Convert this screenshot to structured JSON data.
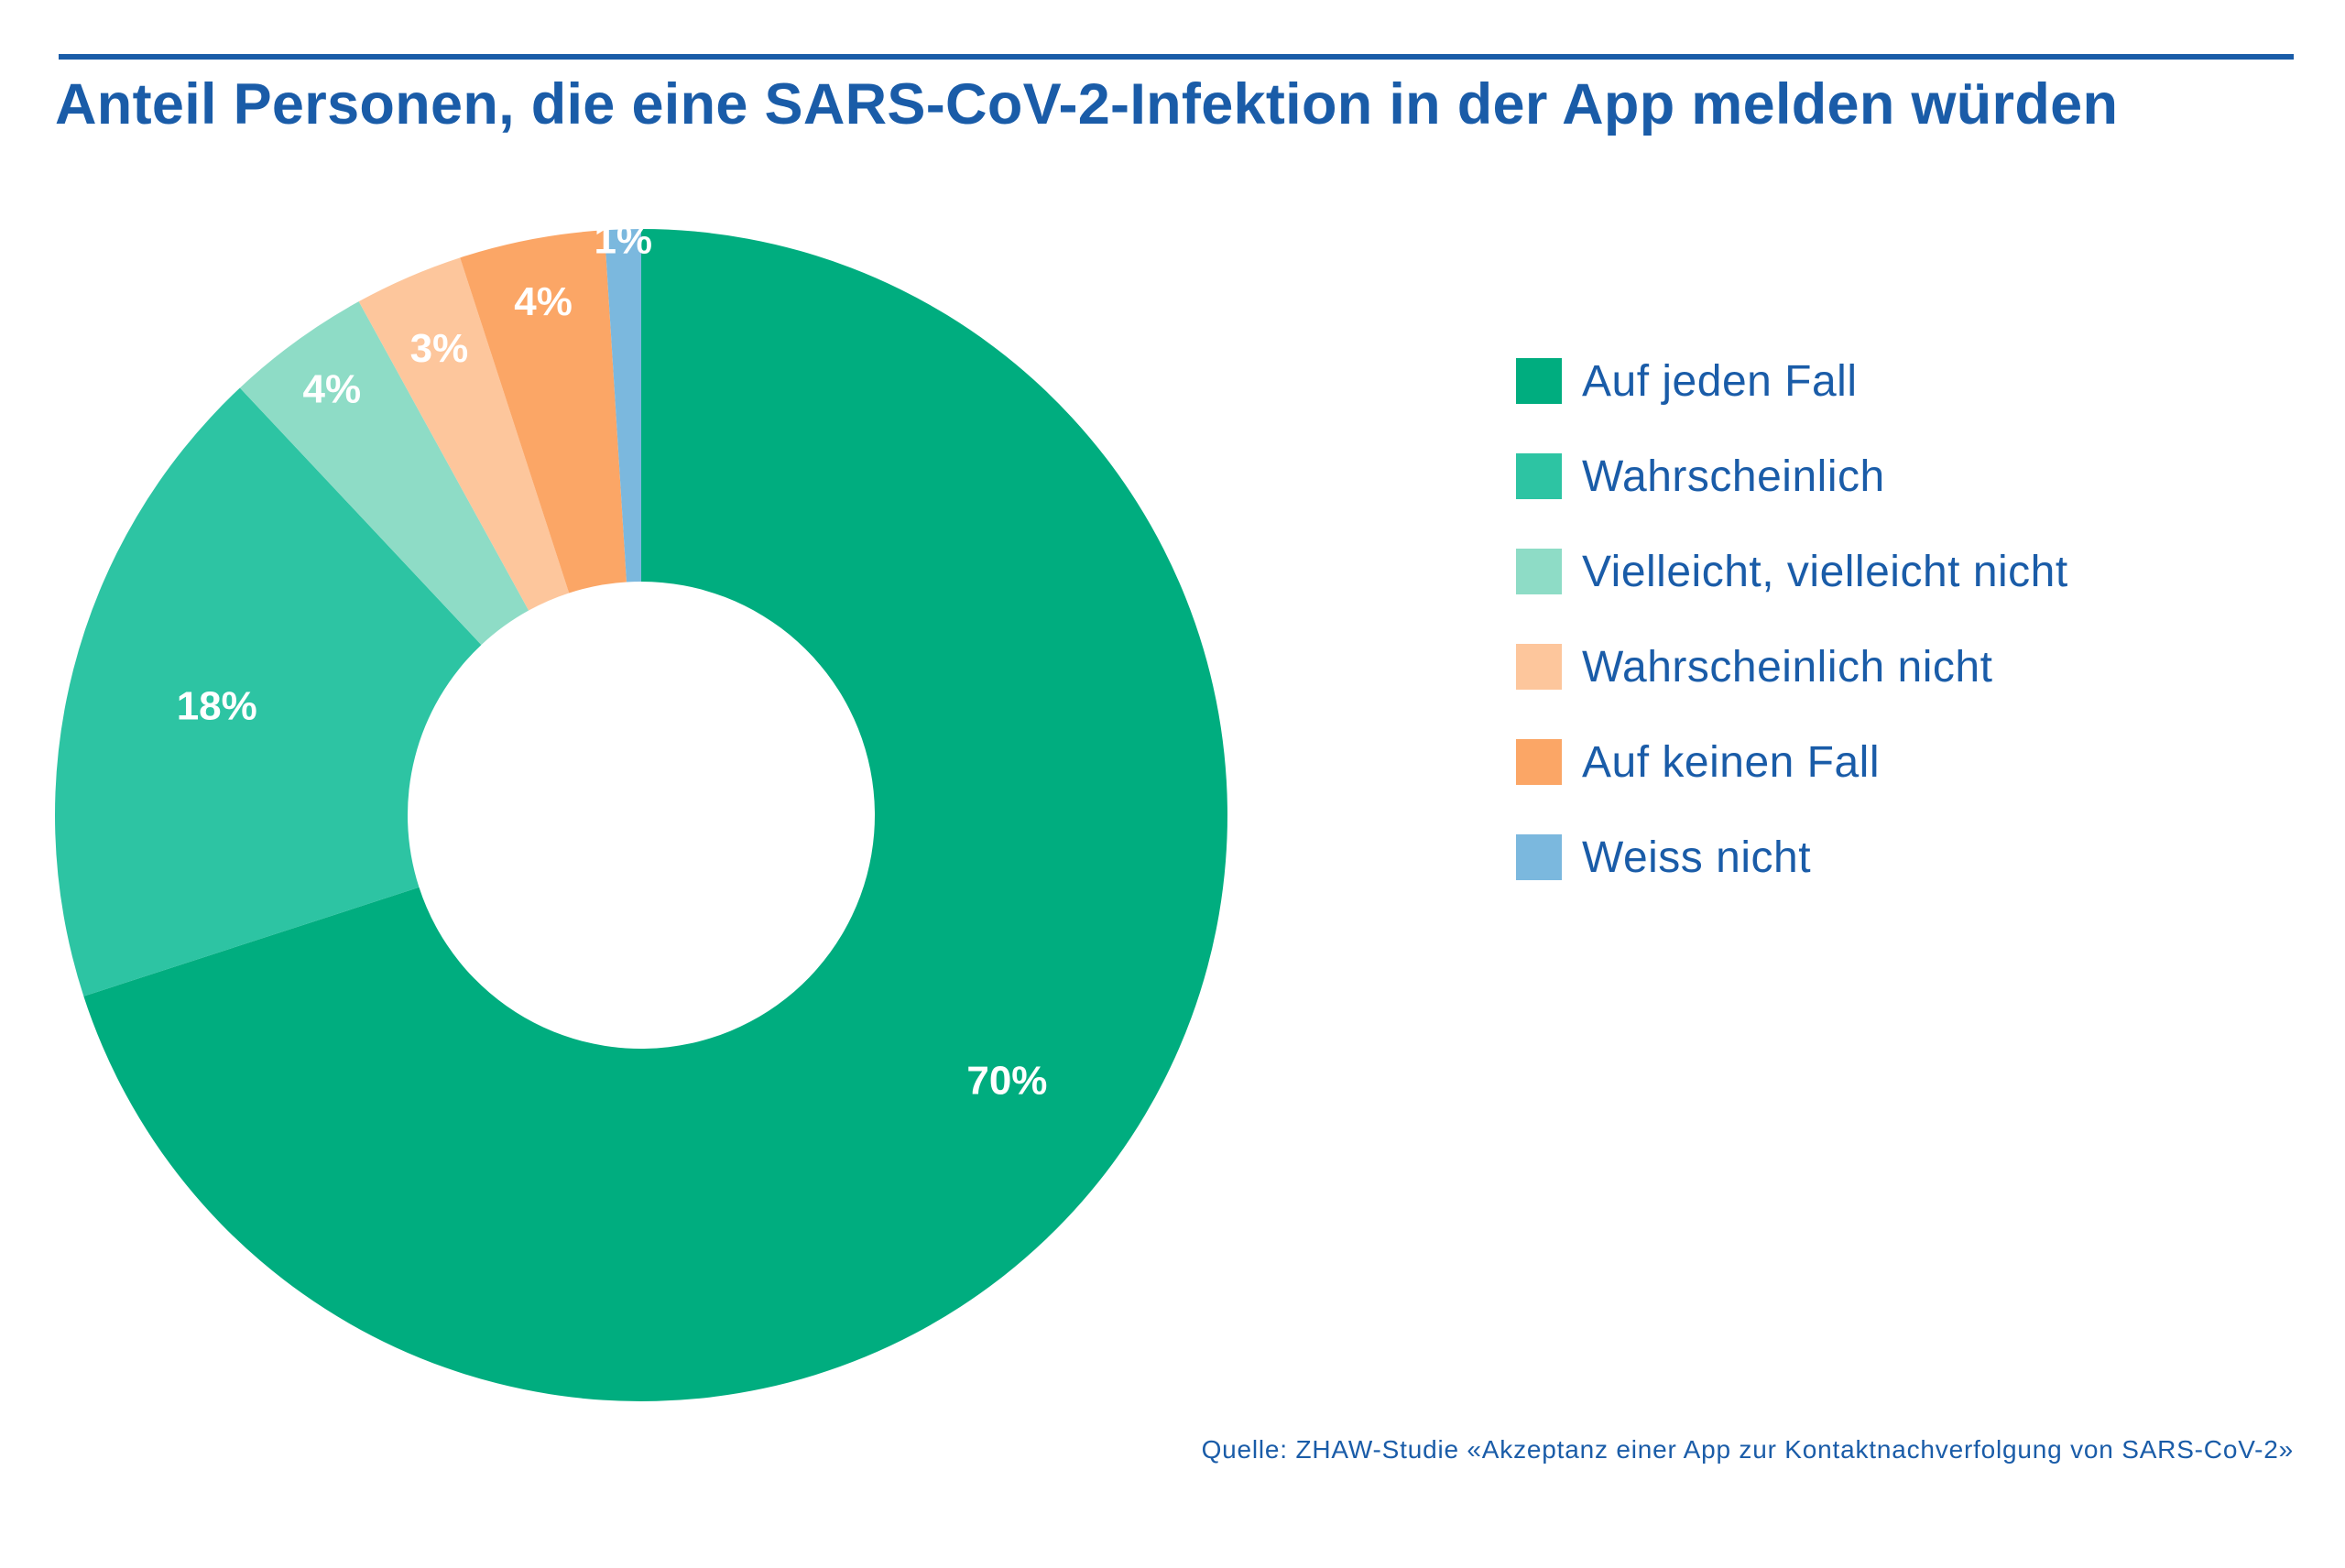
{
  "title": "Anteil Personen, die eine SARS-CoV-2-Infektion in der App melden würden",
  "source": "Quelle: ZHAW-Studie «Akzeptanz einer App zur Kontaktnachverfolgung von SARS-CoV-2»",
  "chart_data": {
    "type": "pie",
    "title": "Anteil Personen, die eine SARS-CoV-2-Infektion in der App melden würden",
    "donut": true,
    "legend_position": "right",
    "categories": [
      "Auf jeden Fall",
      "Wahrscheinlich",
      "Vielleicht, vielleicht nicht",
      "Wahrscheinlich nicht",
      "Auf keinen Fall",
      "Weiss nicht"
    ],
    "values": [
      70,
      18,
      4,
      3,
      4,
      1
    ],
    "labels": [
      "70%",
      "18%",
      "4%",
      "3%",
      "4%",
      "1%"
    ],
    "colors": [
      "#00ad7f",
      "#2dc4a3",
      "#8edcc6",
      "#fdc69c",
      "#fba666",
      "#7bb8de"
    ]
  },
  "legend": {
    "items": [
      {
        "label": "Auf jeden Fall",
        "color": "#00ad7f"
      },
      {
        "label": "Wahrscheinlich",
        "color": "#2dc4a3"
      },
      {
        "label": "Vielleicht, vielleicht nicht",
        "color": "#8edcc6"
      },
      {
        "label": "Wahrscheinlich nicht",
        "color": "#fdc69c"
      },
      {
        "label": "Auf keinen Fall",
        "color": "#fba666"
      },
      {
        "label": "Weiss nicht",
        "color": "#7bb8de"
      }
    ]
  }
}
